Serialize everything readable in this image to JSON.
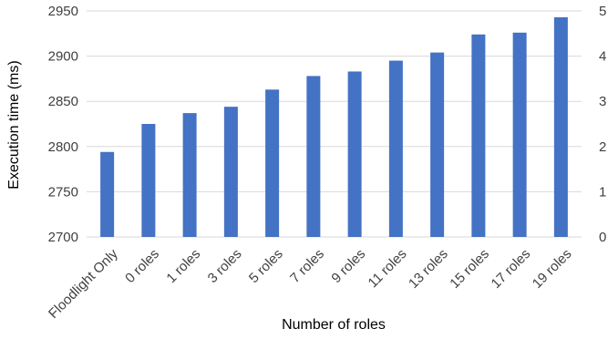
{
  "chart_data": {
    "type": "bar",
    "categories": [
      "Floodlight Only",
      "0 roles",
      "1 roles",
      "3 roles",
      "5 roles",
      "7 roles",
      "9 roles",
      "11 roles",
      "13 roles",
      "15 roles",
      "17 roles",
      "19 roles"
    ],
    "values": [
      2794,
      2825,
      2837,
      2844,
      2863,
      2878,
      2883,
      2895,
      2904,
      2924,
      2926,
      2943
    ],
    "title": "",
    "xlabel": "Number of roles",
    "ylabel": "Execution time (ms)",
    "ylim": [
      2700,
      2950
    ],
    "yticks": [
      2700,
      2750,
      2800,
      2850,
      2900,
      2950
    ],
    "secondary_yticks": [
      "0",
      "1",
      "2",
      "3",
      "4",
      "5"
    ],
    "grid": true,
    "legend": "none",
    "colors": {
      "bar": "#4472c4",
      "grid": "#d9d9d9",
      "tick_text": "#404040"
    }
  }
}
